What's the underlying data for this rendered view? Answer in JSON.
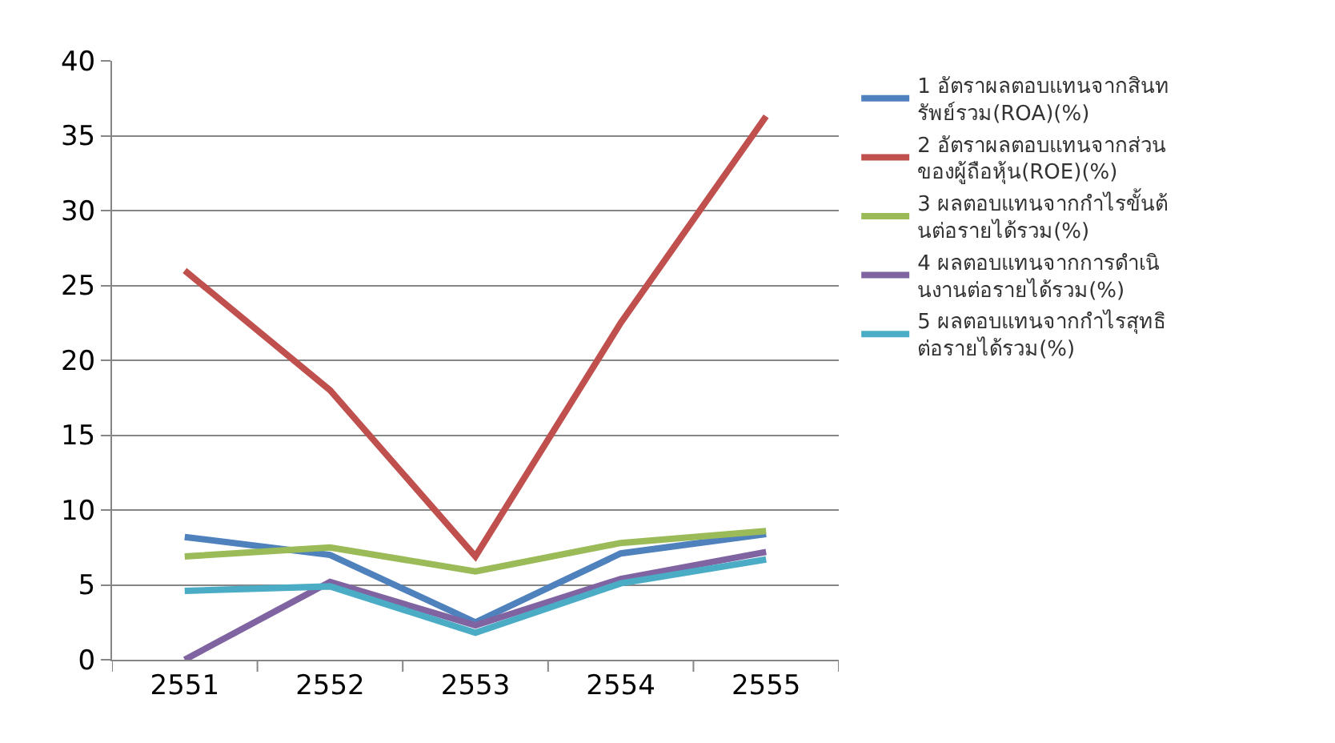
{
  "chart_data": {
    "type": "line",
    "categories": [
      "2551",
      "2552",
      "2553",
      "2554",
      "2555"
    ],
    "series": [
      {
        "name": "1 อัตราผลตอบแทนจากสินทรัพย์รวม(ROA)(%)",
        "color": "#4f81bd",
        "values": [
          8.2,
          7.0,
          2.5,
          7.1,
          8.4
        ]
      },
      {
        "name": "2 อัตราผลตอบแทนจากส่วนของผู้ถือหุ้น(ROE)(%)",
        "color": "#c0504d",
        "values": [
          26.0,
          18.0,
          6.9,
          22.5,
          36.3
        ]
      },
      {
        "name": "3 ผลตอบแทนจากกำไรขั้นต้นต่อรายได้รวม(%)",
        "color": "#9bbb59",
        "values": [
          6.9,
          7.5,
          5.9,
          7.8,
          8.6
        ]
      },
      {
        "name": "4 ผลตอบแทนจากการดำเนินงานต่อรายได้รวม(%)",
        "color": "#8064a2",
        "values": [
          0.0,
          5.2,
          2.3,
          5.4,
          7.2
        ]
      },
      {
        "name": "5 ผลตอบแทนจากกำไรสุทธิต่อรายได้รวม(%)",
        "color": "#4bacc6",
        "values": [
          4.6,
          4.9,
          1.8,
          5.1,
          6.7
        ]
      }
    ],
    "ylim": [
      0,
      40
    ],
    "yticks": [
      0,
      5,
      10,
      15,
      20,
      25,
      30,
      35,
      40
    ],
    "grid": "y",
    "legend": "right",
    "marker": "none",
    "line_style": "solid"
  }
}
